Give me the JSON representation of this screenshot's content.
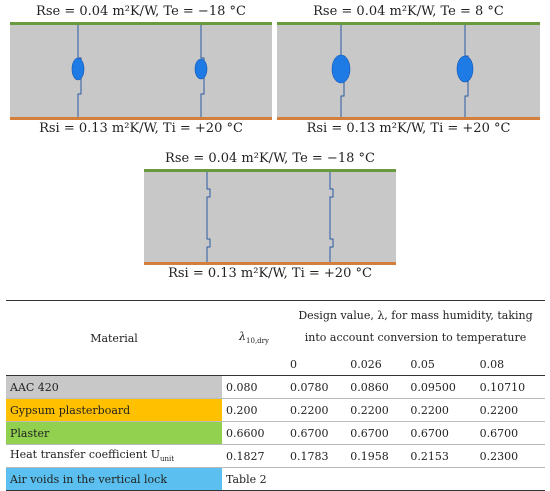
{
  "panels": [
    {
      "id": "top-left",
      "top_caption": "Rse = 0.04 m²K/W, Te = −18 °C",
      "bottom_caption": "Rsi = 0.13 m²K/W, Ti = +20 °C",
      "air_void": "small"
    },
    {
      "id": "top-right",
      "top_caption": "Rse = 0.04 m²K/W, Te = 8 °C",
      "bottom_caption": "Rsi = 0.13 m²K/W, Ti = +20 °C",
      "air_void": "large"
    },
    {
      "id": "bottom-center",
      "top_caption": "Rse = 0.04 m²K/W, Te = −18 °C",
      "bottom_caption": "Rsi = 0.13 m²K/W, Ti = +20 °C",
      "air_void": "none"
    }
  ],
  "colors": {
    "wall": "#c8c8c8",
    "outer_edge": "#6a9a3e",
    "inner_edge": "#d4803c",
    "joint": "#2d5aa3",
    "air_void": "#1e7be6",
    "row_aac": "#c8c8c8",
    "row_gypsum": "#ffc000",
    "row_plaster": "#92d050",
    "row_air": "#5bc0ef"
  },
  "table": {
    "header": {
      "material": "Material",
      "lambda_main": "λ",
      "lambda_sub": "10,dry",
      "design_line1": "Design value, λ, for mass humidity, taking",
      "design_line2": "into account conversion to temperature",
      "humidity_levels": [
        "0",
        "0.026",
        "0.05",
        "0.08"
      ]
    },
    "rows": [
      {
        "material": "AAC 420",
        "lambda_dry": "0.080",
        "values": [
          "0.0780",
          "0.0860",
          "0.09500",
          "0.10710"
        ],
        "color_key": "row_aac"
      },
      {
        "material": "Gypsum plasterboard",
        "lambda_dry": "0.200",
        "values": [
          "0.2200",
          "0.2200",
          "0.2200",
          "0.2200"
        ],
        "color_key": "row_gypsum"
      },
      {
        "material": "Plaster",
        "lambda_dry": "0.6600",
        "values": [
          "0.6700",
          "0.6700",
          "0.6700",
          "0.6700"
        ],
        "color_key": "row_plaster"
      }
    ],
    "heat_row": {
      "label_main": "Heat transfer coefficient U",
      "label_sub": "unit",
      "lambda_dry": "0.1827",
      "values": [
        "0.1783",
        "0.1958",
        "0.2153",
        "0.2300"
      ]
    },
    "air_row": {
      "material": "Air voids in the vertical lock",
      "lambda_dry": "Table 2",
      "color_key": "row_air"
    }
  }
}
